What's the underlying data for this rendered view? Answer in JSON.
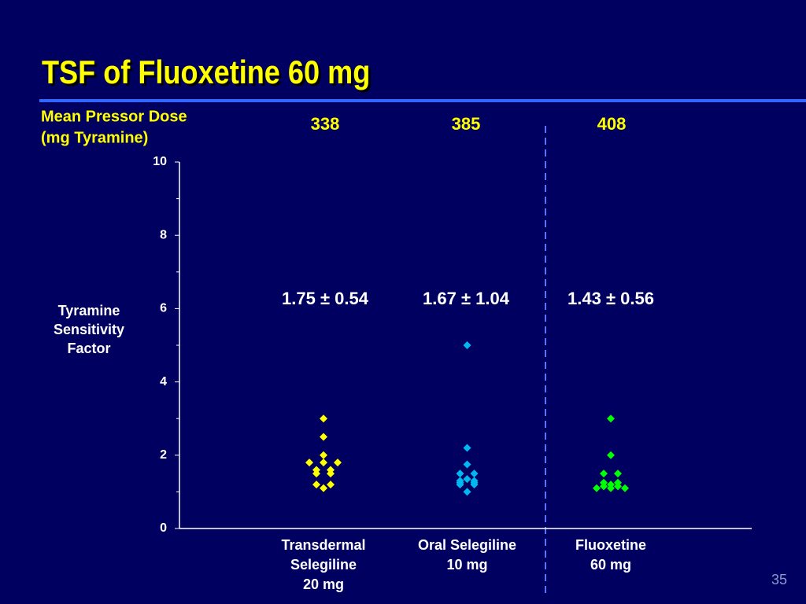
{
  "title": "TSF of Fluoxetine 60 mg",
  "page_number": "35",
  "chart_data": {
    "type": "strip",
    "dose_label": [
      "Mean Pressor Dose",
      "(mg Tyramine)"
    ],
    "doses": [
      338,
      385,
      408
    ],
    "ylabel": [
      "Tyramine",
      "Sensitivity",
      "Factor"
    ],
    "categories": [
      [
        "Transdermal",
        "Selegiline",
        "20 mg"
      ],
      [
        "Oral Selegiline",
        "10 mg"
      ],
      [
        "Fluoxetine",
        "60 mg"
      ]
    ],
    "series": [
      {
        "color": "#ffff00",
        "summary": "1.75 ± 0.54",
        "values": [
          3.0,
          2.5,
          2.0,
          1.8,
          1.8,
          1.8,
          1.6,
          1.6,
          1.5,
          1.5,
          1.1,
          1.2,
          1.2
        ]
      },
      {
        "color": "#00b8f0",
        "summary": "1.67 ± 1.04",
        "values": [
          5.0,
          2.2,
          1.75,
          1.5,
          1.5,
          1.3,
          1.35,
          1.25,
          1.2,
          1.25,
          1.2,
          1.3,
          1.0
        ]
      },
      {
        "color": "#00ff00",
        "summary": "1.43 ± 0.56",
        "values": [
          3.0,
          2.0,
          1.5,
          1.5,
          1.2,
          1.25,
          1.1,
          1.15,
          1.1,
          1.15,
          1.1,
          1.25
        ]
      }
    ],
    "ylim": [
      0,
      10
    ],
    "yticks": [
      0,
      2,
      4,
      6,
      8,
      10
    ],
    "yminorticks": [
      1,
      3,
      5,
      7,
      9
    ]
  }
}
